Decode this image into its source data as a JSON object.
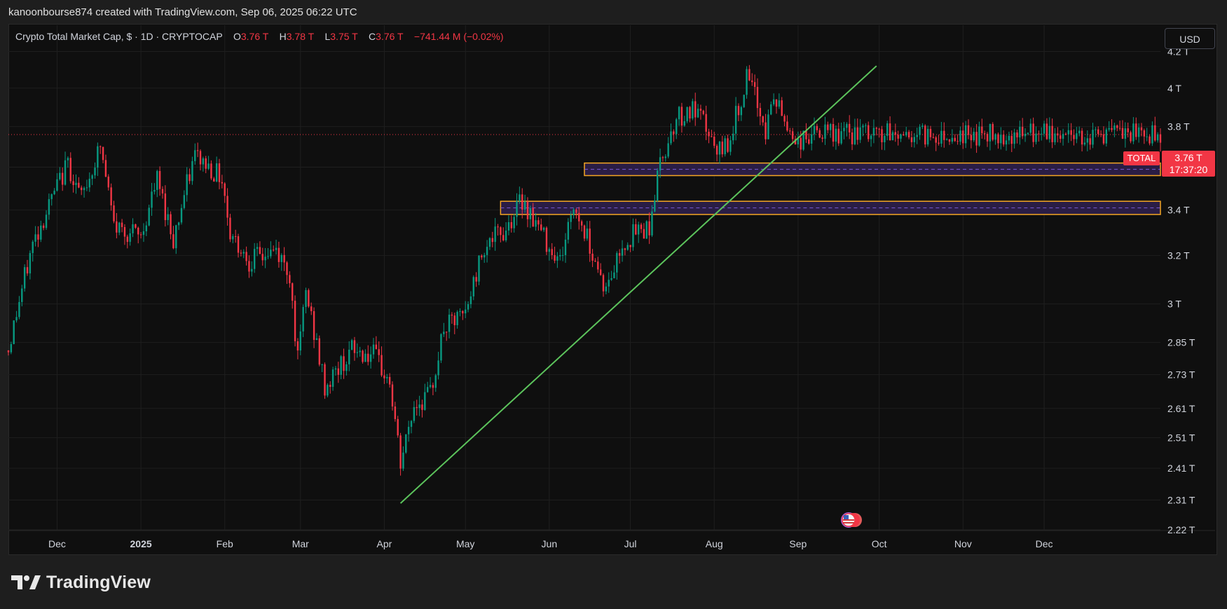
{
  "header": {
    "credit": "kanoonbourse874 created with TradingView.com, Sep 06, 2025 06:22 UTC"
  },
  "legend": {
    "title": "Crypto Total Market Cap, $ · 1D · CRYPTOCAP",
    "o_label": "O",
    "o_value": "3.76 T",
    "h_label": "H",
    "h_value": "3.78 T",
    "l_label": "L",
    "l_value": "3.75 T",
    "c_label": "C",
    "c_value": "3.76 T",
    "change": "−741.44 M (−0.02%)"
  },
  "currency_button": "USD",
  "price_label": {
    "symbol": "TOTAL",
    "price": "3.76 T",
    "countdown": "17:37:20"
  },
  "brand": {
    "name": "TradingView",
    "logo": "tradingview-logo-icon"
  },
  "colors": {
    "up": "#089981",
    "down": "#f23645",
    "trendline": "#5cc45c",
    "zone_border": "#f5a623",
    "zone_fill": "#2a1d45",
    "zone_midline": "#7b5cd6",
    "background": "#0f0f0f"
  },
  "chart_data": {
    "type": "candlestick",
    "title": "Crypto Total Market Cap",
    "y_scale": "log",
    "ylim": [
      2.22,
      4.35
    ],
    "y_ticks": [
      2.22,
      2.31,
      2.41,
      2.51,
      2.61,
      2.73,
      2.85,
      3.0,
      3.2,
      3.4,
      3.6,
      3.8,
      4.0,
      4.2
    ],
    "y_tick_labels": [
      "2.22 T",
      "2.31 T",
      "2.41 T",
      "2.51 T",
      "2.61 T",
      "2.73 T",
      "2.85 T",
      "3 T",
      "3.2 T",
      "3.4 T",
      "3.6 T",
      "3.8 T",
      "4 T",
      "4.2 T"
    ],
    "x_range": [
      "2024-11-13",
      "2026-01-13"
    ],
    "x_ticks": [
      "2024-12-01",
      "2025-01-01",
      "2025-02-01",
      "2025-03-01",
      "2025-04-01",
      "2025-05-01",
      "2025-06-01",
      "2025-07-01",
      "2025-08-01",
      "2025-09-01",
      "2025-10-01",
      "2025-11-01",
      "2025-12-01"
    ],
    "x_tick_labels": [
      "Dec",
      "2025",
      "Feb",
      "Mar",
      "Apr",
      "May",
      "Jun",
      "Jul",
      "Aug",
      "Sep",
      "Oct",
      "Nov",
      "Dec"
    ],
    "last_price": 3.76,
    "path": [
      [
        "2024-11-13",
        2.82
      ],
      [
        "2024-11-22",
        3.25
      ],
      [
        "2024-12-05",
        3.62
      ],
      [
        "2024-12-10",
        3.45
      ],
      [
        "2024-12-17",
        3.7
      ],
      [
        "2024-12-22",
        3.33
      ],
      [
        "2025-01-01",
        3.28
      ],
      [
        "2025-01-07",
        3.54
      ],
      [
        "2025-01-13",
        3.27
      ],
      [
        "2025-01-21",
        3.66
      ],
      [
        "2025-01-31",
        3.55
      ],
      [
        "2025-02-03",
        3.3
      ],
      [
        "2025-02-10",
        3.18
      ],
      [
        "2025-02-20",
        3.22
      ],
      [
        "2025-02-25",
        3.12
      ],
      [
        "2025-02-28",
        2.78
      ],
      [
        "2025-03-03",
        3.05
      ],
      [
        "2025-03-10",
        2.68
      ],
      [
        "2025-03-14",
        2.74
      ],
      [
        "2025-03-20",
        2.82
      ],
      [
        "2025-03-28",
        2.8
      ],
      [
        "2025-04-03",
        2.7
      ],
      [
        "2025-04-07",
        2.42
      ],
      [
        "2025-04-12",
        2.62
      ],
      [
        "2025-04-18",
        2.66
      ],
      [
        "2025-04-23",
        2.9
      ],
      [
        "2025-05-01",
        2.96
      ],
      [
        "2025-05-08",
        3.25
      ],
      [
        "2025-05-15",
        3.3
      ],
      [
        "2025-05-22",
        3.45
      ],
      [
        "2025-05-30",
        3.28
      ],
      [
        "2025-06-05",
        3.18
      ],
      [
        "2025-06-10",
        3.42
      ],
      [
        "2025-06-16",
        3.25
      ],
      [
        "2025-06-22",
        3.05
      ],
      [
        "2025-06-28",
        3.25
      ],
      [
        "2025-07-03",
        3.3
      ],
      [
        "2025-07-08",
        3.33
      ],
      [
        "2025-07-12",
        3.62
      ],
      [
        "2025-07-18",
        3.85
      ],
      [
        "2025-07-24",
        3.88
      ],
      [
        "2025-07-29",
        3.8
      ],
      [
        "2025-08-02",
        3.65
      ],
      [
        "2025-08-07",
        3.75
      ],
      [
        "2025-08-13",
        4.05
      ],
      [
        "2025-08-17",
        3.92
      ],
      [
        "2025-08-20",
        3.78
      ],
      [
        "2025-08-23",
        3.95
      ],
      [
        "2025-08-28",
        3.8
      ],
      [
        "2025-09-01",
        3.72
      ],
      [
        "2025-09-06",
        3.76
      ]
    ],
    "annotations": {
      "trendline": {
        "from": [
          "2025-04-07",
          2.3
        ],
        "to": [
          "2025-09-30",
          4.12
        ]
      },
      "zones": [
        {
          "from": "2025-06-14",
          "low": 3.56,
          "high": 3.62
        },
        {
          "from": "2025-05-14",
          "low": 3.38,
          "high": 3.44
        }
      ]
    }
  }
}
